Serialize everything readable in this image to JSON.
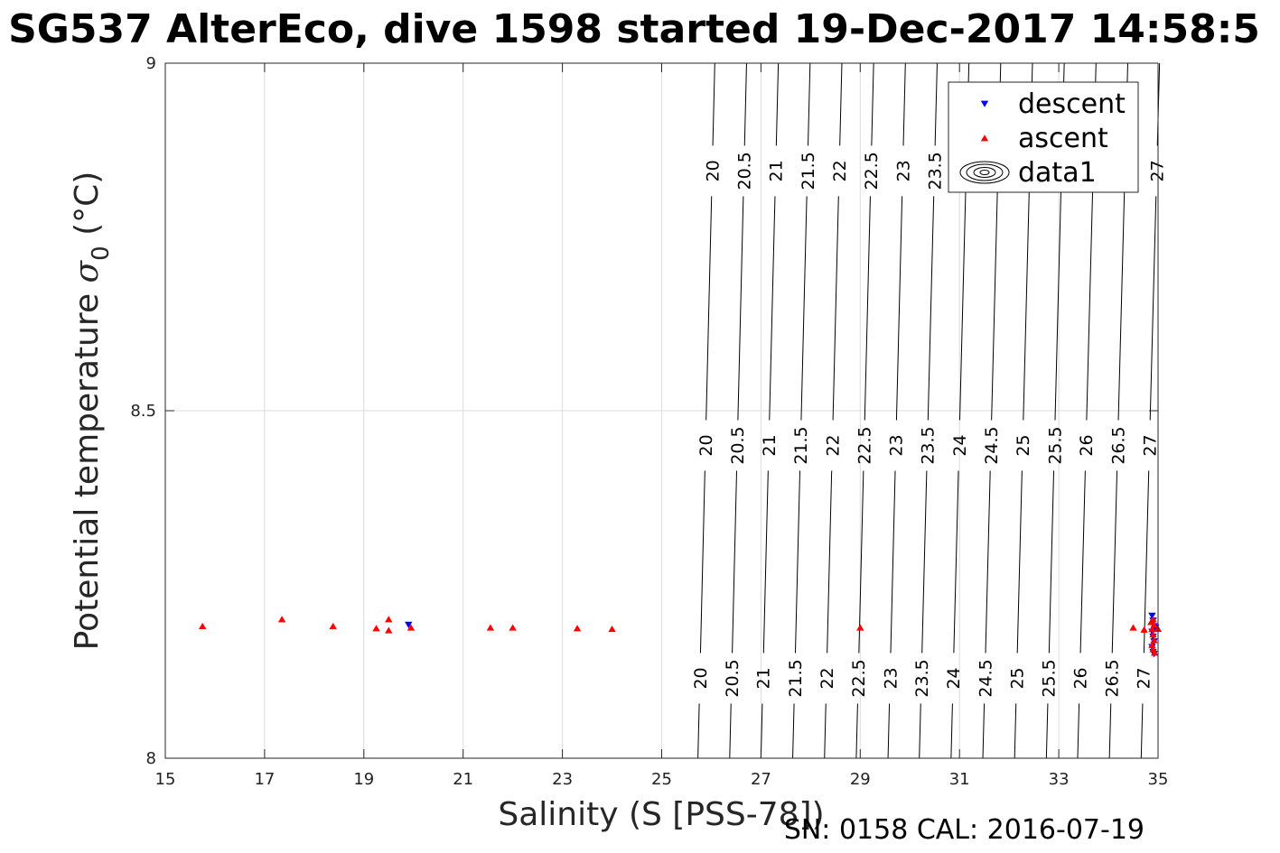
{
  "chart_data": {
    "type": "scatter",
    "title": "SG537 AlterEco, dive 1598 started 19-Dec-2017 14:58:5",
    "xlabel": "Salinity (S [PSS-78])",
    "ylabel": "Potential temperature",
    "ylabel_symbol": "σ",
    "ylabel_subscript": "0",
    "ylabel_unit": "(°C)",
    "xlim": [
      15,
      35
    ],
    "ylim": [
      8,
      9
    ],
    "xticks": [
      15,
      17,
      19,
      21,
      23,
      25,
      27,
      29,
      31,
      33,
      35
    ],
    "yticks": [
      8,
      8.5,
      9
    ],
    "grid": true,
    "legend_position": "top-right",
    "series": [
      {
        "name": "descent",
        "marker": "triangle-down",
        "color": "#0000ff",
        "points": [
          [
            19.9,
            8.192
          ],
          [
            34.88,
            8.205
          ],
          [
            34.9,
            8.198
          ],
          [
            34.92,
            8.19
          ],
          [
            34.88,
            8.182
          ],
          [
            34.9,
            8.175
          ],
          [
            34.92,
            8.168
          ],
          [
            34.88,
            8.16
          ],
          [
            34.9,
            8.153
          ],
          [
            34.92,
            8.15
          ],
          [
            34.95,
            8.188
          ]
        ]
      },
      {
        "name": "ascent",
        "marker": "triangle-up",
        "color": "#ff0000",
        "points": [
          [
            15.75,
            8.19
          ],
          [
            17.35,
            8.2
          ],
          [
            18.38,
            8.19
          ],
          [
            19.25,
            8.187
          ],
          [
            19.5,
            8.2
          ],
          [
            19.5,
            8.184
          ],
          [
            19.95,
            8.188
          ],
          [
            21.55,
            8.188
          ],
          [
            22.0,
            8.188
          ],
          [
            23.3,
            8.187
          ],
          [
            24.0,
            8.186
          ],
          [
            29.0,
            8.188
          ],
          [
            34.5,
            8.188
          ],
          [
            34.72,
            8.185
          ],
          [
            34.9,
            8.2
          ],
          [
            34.92,
            8.192
          ],
          [
            34.88,
            8.186
          ],
          [
            34.9,
            8.178
          ],
          [
            34.92,
            8.17
          ],
          [
            34.88,
            8.163
          ],
          [
            34.9,
            8.157
          ],
          [
            34.93,
            8.152
          ],
          [
            35.0,
            8.186
          ],
          [
            34.86,
            8.196
          ]
        ]
      },
      {
        "name": "data1",
        "marker": "contour",
        "color": "#000000"
      }
    ],
    "contours": {
      "levels": [
        "20",
        "20.5",
        "21",
        "21.5",
        "22",
        "22.5",
        "23",
        "23.5",
        "24",
        "24.5",
        "25",
        "25.5",
        "26",
        "26.5",
        "27"
      ],
      "salinity_at_t8": [
        25.73,
        26.37,
        27.0,
        27.64,
        28.28,
        28.92,
        29.56,
        30.19,
        30.83,
        31.47,
        32.11,
        32.75,
        33.38,
        34.02,
        34.66
      ],
      "salinity_at_t9": [
        26.07,
        26.71,
        27.35,
        27.99,
        28.63,
        29.27,
        29.91,
        30.55,
        31.19,
        31.83,
        32.47,
        33.11,
        33.75,
        34.39,
        35.03
      ],
      "label_rows": [
        {
          "t": 8.115,
          "levels": [
            "20",
            "20.5",
            "21",
            "21.5",
            "22",
            "22.5",
            "23",
            "23.5",
            "24",
            "24.5",
            "25",
            "25.5",
            "26",
            "26.5",
            "27"
          ]
        },
        {
          "t": 8.45,
          "levels": [
            "20",
            "20.5",
            "21",
            "21.5",
            "22",
            "22.5",
            "23",
            "23.5",
            "24",
            "24.5",
            "25",
            "25.5",
            "26",
            "26.5",
            "27"
          ]
        },
        {
          "t": 8.845,
          "levels": [
            "20",
            "20.5",
            "21",
            "21.5",
            "22",
            "22.5",
            "23",
            "23.5",
            "27"
          ]
        }
      ]
    }
  },
  "footer": {
    "serial": "SN: 0158  CAL: 2016-07-19"
  }
}
